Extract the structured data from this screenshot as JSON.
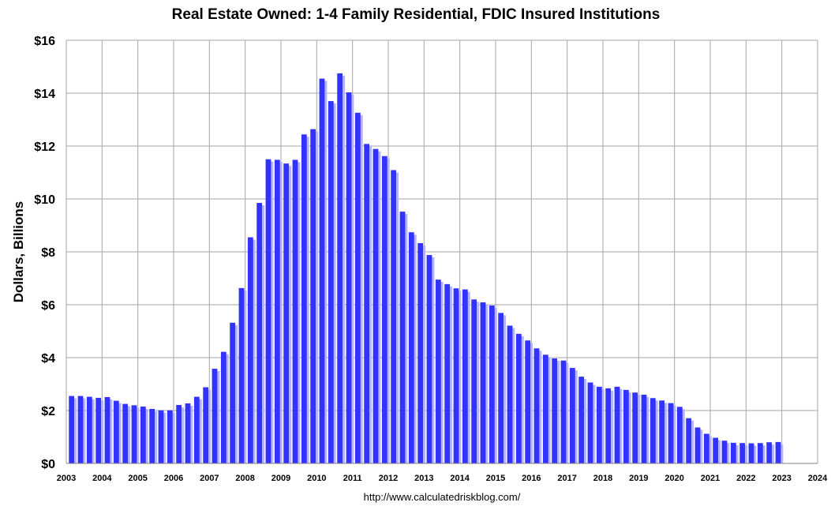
{
  "chart_data": {
    "type": "bar",
    "title": "Real Estate Owned: 1-4 Family Residential, FDIC Insured Institutions",
    "xlabel": "",
    "ylabel": "Dollars, Billions",
    "source": "http://www.calculatedriskblog.com/",
    "ylim": [
      0,
      16
    ],
    "xlim": [
      2003,
      2024
    ],
    "yticks": [
      "$0",
      "$2",
      "$4",
      "$6",
      "$8",
      "$10",
      "$12",
      "$14",
      "$16"
    ],
    "xticks": [
      "2003",
      "2004",
      "2005",
      "2006",
      "2007",
      "2008",
      "2009",
      "2010",
      "2011",
      "2012",
      "2013",
      "2014",
      "2015",
      "2016",
      "2017",
      "2018",
      "2019",
      "2020",
      "2021",
      "2022",
      "2023",
      "2024"
    ],
    "grid": true,
    "colors": {
      "bar": "#3333ff",
      "shadow": "#b3b3ff",
      "grid": "#a6a6a6"
    },
    "series": [
      {
        "start": "2003 Q1",
        "frequency": "quarterly",
        "values": [
          2.55,
          2.55,
          2.52,
          2.48,
          2.51,
          2.37,
          2.25,
          2.2,
          2.15,
          2.06,
          2.01,
          2.01,
          2.21,
          2.27,
          2.52,
          2.88,
          3.58,
          4.22,
          5.32,
          6.63,
          8.55,
          9.85,
          11.5,
          11.48,
          11.34,
          11.48,
          12.44,
          12.64,
          14.55,
          13.7,
          14.75,
          14.03,
          13.26,
          12.08,
          11.89,
          11.62,
          11.09,
          9.52,
          8.74,
          8.33,
          7.88,
          6.95,
          6.78,
          6.62,
          6.58,
          6.2,
          6.09,
          5.97,
          5.69,
          5.21,
          4.9,
          4.65,
          4.35,
          4.11,
          3.97,
          3.89,
          3.61,
          3.28,
          3.06,
          2.9,
          2.84,
          2.9,
          2.78,
          2.68,
          2.6,
          2.47,
          2.38,
          2.28,
          2.14,
          1.71,
          1.36,
          1.12,
          0.97,
          0.86,
          0.78,
          0.77,
          0.76,
          0.77,
          0.8,
          0.81
        ]
      }
    ]
  }
}
